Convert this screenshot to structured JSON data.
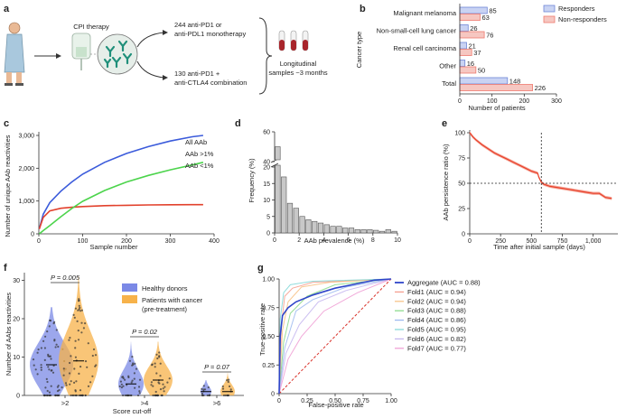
{
  "panels": {
    "a": {
      "letter": "a",
      "therapy_label": "CPI therapy",
      "branch_mono": [
        "244 anti-PD1 or",
        "anti-PDL1 monotherapy"
      ],
      "branch_combo": [
        "130 anti-PD1 +",
        "anti-CTLA4 combination"
      ],
      "samples": [
        "Longitudinal",
        "samples ~3 months"
      ]
    },
    "b": {
      "letter": "b"
    },
    "c": {
      "letter": "c"
    },
    "d": {
      "letter": "d"
    },
    "e": {
      "letter": "e"
    },
    "f": {
      "letter": "f"
    },
    "g": {
      "letter": "g"
    }
  },
  "colors": {
    "responders": "#6f86d6",
    "non_responders": "#ef7a6e",
    "all_aab": "#3b5bdb",
    "aab_gt1": "#e2412c",
    "aab_lt1": "#4cd44c",
    "healthy": "#7b89e6",
    "patients": "#f7b24a",
    "persistence": "#e8402a",
    "hist_bar": "#c8c8c8"
  },
  "chart_data": [
    {
      "id": "b",
      "type": "bar",
      "orientation": "horizontal",
      "categories": [
        "Malignant melanoma",
        "Non-small-cell lung cancer",
        "Renal cell carcinoma",
        "Other",
        "Total"
      ],
      "series": [
        {
          "name": "Responders",
          "values": [
            85,
            26,
            21,
            16,
            148
          ]
        },
        {
          "name": "Non-responders",
          "values": [
            63,
            76,
            37,
            50,
            226
          ]
        }
      ],
      "xlabel": "Number of patients",
      "ylabel": "Cancer type",
      "xlim": [
        0,
        300
      ],
      "xticks": [
        0,
        100,
        200,
        300
      ],
      "legend": "top-right"
    },
    {
      "id": "c",
      "type": "line",
      "series": [
        {
          "name": "All AAb",
          "x": [
            1,
            10,
            25,
            50,
            75,
            100,
            150,
            200,
            250,
            300,
            350,
            375
          ],
          "y": [
            150,
            600,
            950,
            1300,
            1580,
            1820,
            2180,
            2450,
            2660,
            2830,
            2960,
            3000
          ]
        },
        {
          "name": "AAb >1%",
          "x": [
            1,
            10,
            25,
            50,
            75,
            100,
            150,
            200,
            250,
            300,
            350,
            375
          ],
          "y": [
            150,
            500,
            700,
            780,
            810,
            830,
            860,
            870,
            880,
            885,
            890,
            890
          ]
        },
        {
          "name": "AAb <1%",
          "x": [
            1,
            10,
            25,
            50,
            75,
            100,
            150,
            200,
            250,
            300,
            350,
            375
          ],
          "y": [
            0,
            100,
            250,
            520,
            770,
            990,
            1320,
            1580,
            1780,
            1950,
            2100,
            2180
          ]
        }
      ],
      "xlabel": "Sample number",
      "ylabel": "Number of unique AAb reactivities",
      "xlim": [
        0,
        400
      ],
      "ylim": [
        0,
        3000
      ],
      "xticks": [
        0,
        100,
        200,
        300,
        400
      ],
      "yticks": [
        0,
        1000,
        2000,
        3000
      ],
      "ytick_labels": [
        "0",
        "1,000",
        "2,000",
        "3,000"
      ],
      "legend": "right"
    },
    {
      "id": "d",
      "type": "bar",
      "bin_width": 0.5,
      "bin_starts": [
        0,
        0.5,
        1.0,
        1.5,
        2.0,
        2.5,
        3.0,
        3.5,
        4.0,
        4.5,
        5.0,
        5.5,
        6.0,
        6.5,
        7.0,
        7.5,
        8.0,
        8.5,
        9.0,
        9.5
      ],
      "values": [
        50,
        17,
        9,
        7.5,
        5,
        4,
        3.5,
        3,
        2.5,
        2,
        2,
        1.5,
        1.5,
        1,
        1,
        1,
        0.8,
        0.5,
        1,
        0.5
      ],
      "xlabel": "AAb prevalence (%)",
      "ylabel": "Frequency (%)",
      "xlim": [
        0,
        10
      ],
      "xticks": [
        0,
        2,
        4,
        6,
        8,
        10
      ],
      "ylim": [
        0,
        60
      ],
      "axis_break": [
        20,
        40
      ],
      "yticks": [
        0,
        5,
        10,
        15,
        20,
        40,
        60
      ]
    },
    {
      "id": "e",
      "type": "line",
      "series": [
        {
          "name": "AAb persistence",
          "x": [
            0,
            25,
            50,
            100,
            150,
            200,
            250,
            300,
            350,
            400,
            450,
            500,
            550,
            560,
            580,
            600,
            650,
            700,
            750,
            800,
            850,
            900,
            950,
            1000,
            1050,
            1100,
            1150
          ],
          "y": [
            100,
            96,
            93,
            88,
            84,
            80,
            77,
            74,
            71,
            68,
            65,
            62,
            60,
            56,
            51,
            49,
            47,
            46,
            45,
            44,
            43,
            42,
            41,
            40,
            40,
            36,
            35
          ]
        }
      ],
      "xlabel": "Time after initial sample (days)",
      "ylabel": "AAb persistence ratio (%)",
      "xlim": [
        0,
        1200
      ],
      "ylim": [
        0,
        100
      ],
      "xticks": [
        0,
        250,
        500,
        750,
        1000
      ],
      "xtick_labels": [
        "0",
        "250",
        "500",
        "750",
        "1,000"
      ],
      "yticks": [
        0,
        25,
        50,
        75,
        100
      ],
      "ref_x": 580,
      "ref_y": 50
    },
    {
      "id": "f",
      "type": "scatter",
      "categories": [
        ">2",
        ">4",
        ">6"
      ],
      "series": [
        {
          "name": "Healthy donors",
          "medians": [
            8,
            3,
            1
          ],
          "max": [
            23,
            14,
            4
          ]
        },
        {
          "name": "Patients with cancer (pre-treatment)",
          "medians": [
            9,
            4,
            1
          ],
          "max": [
            31,
            14,
            6
          ]
        }
      ],
      "pvalues": [
        "P = 0.005",
        "P = 0.02",
        "P = 0.07"
      ],
      "xlabel": "Score cut-off",
      "ylabel": "Number of AAbs reactivities",
      "ylim": [
        0,
        32
      ],
      "yticks": [
        0,
        10,
        20,
        30
      ],
      "legend": "top-right"
    },
    {
      "id": "g",
      "type": "line",
      "series": [
        {
          "name": "Aggregate (AUC = 0.88)",
          "color": "#2f45c9"
        },
        {
          "name": "Fold1 (AUC = 0.94)",
          "color": "#f59a8a"
        },
        {
          "name": "Fold2 (AUC = 0.94)",
          "color": "#f7c081"
        },
        {
          "name": "Fold3 (AUC = 0.88)",
          "color": "#86d886"
        },
        {
          "name": "Fold4 (AUC = 0.86)",
          "color": "#9ab7ef"
        },
        {
          "name": "Fold5 (AUC = 0.95)",
          "color": "#7fd7d7"
        },
        {
          "name": "Fold6 (AUC = 0.82)",
          "color": "#c3b4ef"
        },
        {
          "name": "Fold7 (AUC = 0.77)",
          "color": "#ef9ad2"
        }
      ],
      "xlabel": "False-positive rate",
      "ylabel": "True-positive rate",
      "xlim": [
        0,
        1
      ],
      "ylim": [
        0,
        1
      ],
      "xticks": [
        0,
        0.25,
        0.5,
        0.75,
        1
      ],
      "xtick_labels": [
        "0",
        "0.25",
        "0.50",
        "0.75",
        "1.00"
      ],
      "yticks": [
        0,
        0.25,
        0.5,
        0.75,
        1
      ],
      "ytick_labels": [
        "0",
        "0.25",
        "0.50",
        "0.75",
        "1.00"
      ],
      "legend": "right"
    }
  ]
}
